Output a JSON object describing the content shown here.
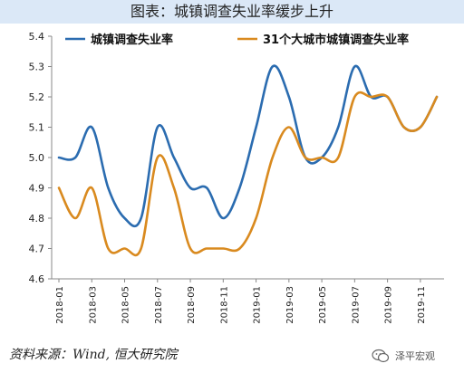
{
  "page": {
    "title": "图表：城镇调查失业率缓步上升",
    "source": "资料来源：Wind, 恒大研究院",
    "watermark": "泽平宏观"
  },
  "chart_data": {
    "type": "line",
    "title": "图表：城镇调查失业率缓步上升",
    "xlabel": "",
    "ylabel": "",
    "ylim": [
      4.6,
      5.4
    ],
    "yticks": [
      "4.6",
      "4.7",
      "4.8",
      "4.9",
      "5.0",
      "5.1",
      "5.2",
      "5.3",
      "5.4"
    ],
    "x": [
      "2018-01",
      "2018-02",
      "2018-03",
      "2018-04",
      "2018-05",
      "2018-06",
      "2018-07",
      "2018-08",
      "2018-09",
      "2018-10",
      "2018-11",
      "2018-12",
      "2019-01",
      "2019-02",
      "2019-03",
      "2019-04",
      "2019-05",
      "2019-06",
      "2019-07",
      "2019-08",
      "2019-09",
      "2019-10",
      "2019-11",
      "2019-12"
    ],
    "xtick_labels": [
      "2018-01",
      "2018-03",
      "2018-05",
      "2018-07",
      "2018-09",
      "2018-11",
      "2019-01",
      "2019-03",
      "2019-05",
      "2019-07",
      "2019-09",
      "2019-11"
    ],
    "grid": false,
    "legend_position": "top",
    "series": [
      {
        "name": "城镇调查失业率",
        "color": "#2b6cb0",
        "values": [
          5.0,
          5.0,
          5.1,
          4.9,
          4.8,
          4.8,
          5.1,
          5.0,
          4.9,
          4.9,
          4.8,
          4.9,
          5.1,
          5.3,
          5.2,
          5.0,
          5.0,
          5.1,
          5.3,
          5.2,
          5.2,
          5.1,
          5.1,
          5.2
        ]
      },
      {
        "name": "31个大城市城镇调查失业率",
        "color": "#d98a1f",
        "values": [
          4.9,
          4.8,
          4.9,
          4.7,
          4.7,
          4.7,
          5.0,
          4.9,
          4.7,
          4.7,
          4.7,
          4.7,
          4.8,
          5.0,
          5.1,
          5.0,
          5.0,
          5.0,
          5.2,
          5.2,
          5.2,
          5.1,
          5.1,
          5.2
        ]
      }
    ]
  }
}
